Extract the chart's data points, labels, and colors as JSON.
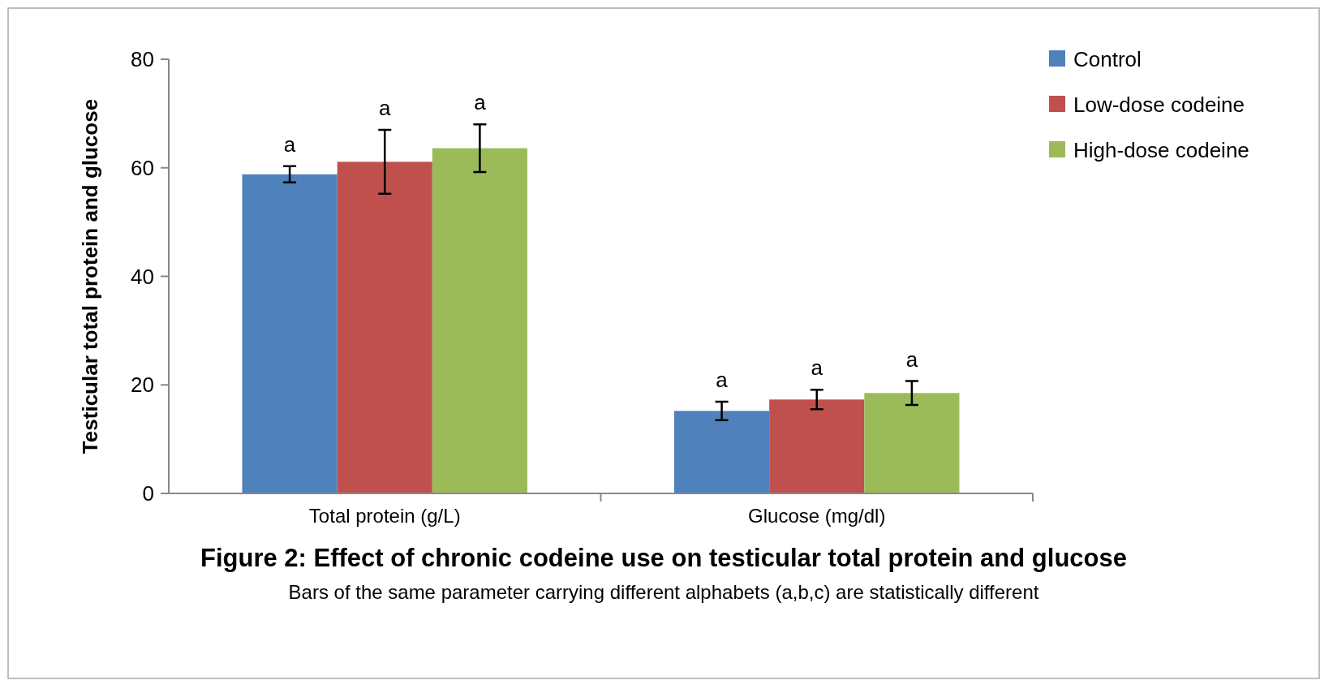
{
  "chart_data": {
    "type": "bar",
    "title": "Figure 2: Effect of chronic codeine use on testicular total protein and glucose",
    "subtitle": "Bars of the same parameter carrying different alphabets (a,b,c) are statistically different",
    "ylabel": "Testicular total protein and glucose",
    "categories": [
      "Total protein (g/L)",
      "Glucose (mg/dl)"
    ],
    "series": [
      {
        "name": "Control",
        "color": "#4f81bd",
        "values": [
          58.8,
          15.2
        ],
        "errors": [
          1.5,
          1.7
        ],
        "value_labels": [
          "a",
          "a"
        ]
      },
      {
        "name": "Low-dose codeine",
        "color": "#c0504d",
        "values": [
          61.1,
          17.3
        ],
        "errors": [
          5.9,
          1.8
        ],
        "value_labels": [
          "a",
          "a"
        ]
      },
      {
        "name": "High-dose codeine",
        "color": "#9bbb59",
        "values": [
          63.6,
          18.5
        ],
        "errors": [
          4.4,
          2.2
        ],
        "value_labels": [
          "a",
          "a"
        ]
      }
    ],
    "ylim": [
      0,
      80
    ],
    "yticks": [
      0,
      20,
      40,
      60,
      80
    ],
    "grid": false,
    "legend": "top right"
  }
}
